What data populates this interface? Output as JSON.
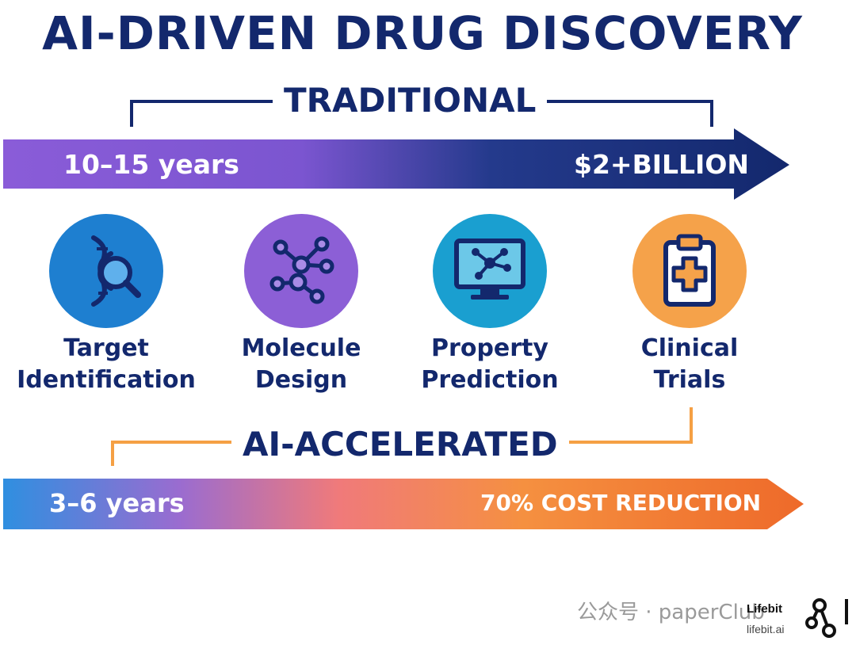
{
  "title": "AI-DRIVEN DRUG DISCOVERY",
  "traditional": {
    "label": "TRADITIONAL",
    "duration": "10–15 years",
    "cost": "$2+BILLION"
  },
  "steps": [
    {
      "line1": "Target",
      "line2": "Identification",
      "icon": "dna-magnifier-icon",
      "color": "#1e7fd0"
    },
    {
      "line1": "Molecule",
      "line2": "Design",
      "icon": "molecule-icon",
      "color": "#8c5fd6"
    },
    {
      "line1": "Property",
      "line2": "Prediction",
      "icon": "monitor-molecule-icon",
      "color": "#1a9fd0"
    },
    {
      "line1": "Clinical",
      "line2": "Trials",
      "icon": "clipboard-medical-icon",
      "color": "#f5a24a"
    }
  ],
  "accelerated": {
    "label": "AI-ACCELERATED",
    "duration": "3–6 years",
    "cost": "70% COST REDUCTION"
  },
  "watermark": "公众号 · paperClub",
  "brand": {
    "name": "Lifebit",
    "url": "lifebit.ai"
  },
  "colors": {
    "navy": "#13286d",
    "purple": "#8a5cd8",
    "orange": "#f0803a",
    "orange_bracket": "#f5a044",
    "blue": "#2f8fe0"
  }
}
